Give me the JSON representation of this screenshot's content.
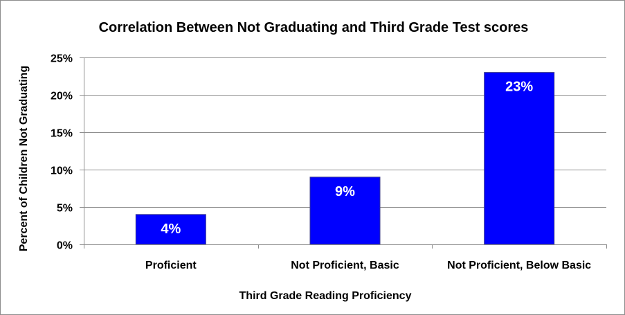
{
  "chart_data": {
    "type": "bar",
    "title": "Correlation Between Not Graduating and Third Grade Test scores",
    "xlabel": "Third Grade Reading Proficiency",
    "ylabel": "Percent of Children Not Graduating",
    "categories": [
      "Proficient",
      "Not Proficient, Basic",
      "Not Proficient, Below Basic"
    ],
    "values": [
      4,
      9,
      23
    ],
    "data_labels": [
      "4%",
      "9%",
      "23%"
    ],
    "ylim": [
      0,
      25
    ],
    "yticks": [
      0,
      5,
      10,
      15,
      20,
      25
    ],
    "ytick_labels": [
      "0%",
      "5%",
      "10%",
      "15%",
      "20%",
      "25%"
    ],
    "grid": true,
    "bar_color": "#0000ff"
  }
}
